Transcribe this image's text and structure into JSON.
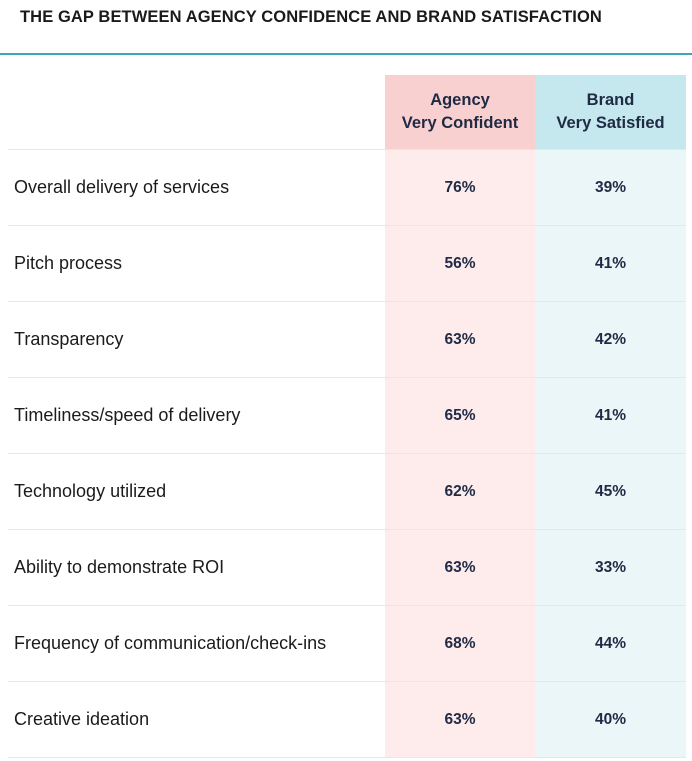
{
  "title": "THE GAP BETWEEN AGENCY CONFIDENCE AND BRAND SATISFACTION",
  "colors": {
    "accent_rule": "#3aa9b5",
    "agency_header": "#f9d0d0",
    "agency_cell": "#fdeceb",
    "brand_header": "#c5e7ee",
    "brand_cell": "#eaf6f8"
  },
  "chart_data": {
    "type": "table",
    "title": "THE GAP BETWEEN AGENCY CONFIDENCE AND BRAND SATISFACTION",
    "columns": [
      {
        "key": "agency",
        "label_lines": [
          "Agency",
          "Very Confident"
        ]
      },
      {
        "key": "brand",
        "label_lines": [
          "Brand",
          "Very Satisfied"
        ]
      }
    ],
    "rows": [
      {
        "label": "Overall delivery of services",
        "agency": "76%",
        "brand": "39%"
      },
      {
        "label": "Pitch process",
        "agency": "56%",
        "brand": "41%"
      },
      {
        "label": "Transparency",
        "agency": "63%",
        "brand": "42%"
      },
      {
        "label": "Timeliness/speed of delivery",
        "agency": "65%",
        "brand": "41%"
      },
      {
        "label": "Technology utilized",
        "agency": "62%",
        "brand": "45%"
      },
      {
        "label": "Ability to demonstrate ROI",
        "agency": "63%",
        "brand": "33%"
      },
      {
        "label": "Frequency of communication/check-ins",
        "agency": "68%",
        "brand": "44%"
      },
      {
        "label": "Creative ideation",
        "agency": "63%",
        "brand": "40%"
      }
    ]
  }
}
